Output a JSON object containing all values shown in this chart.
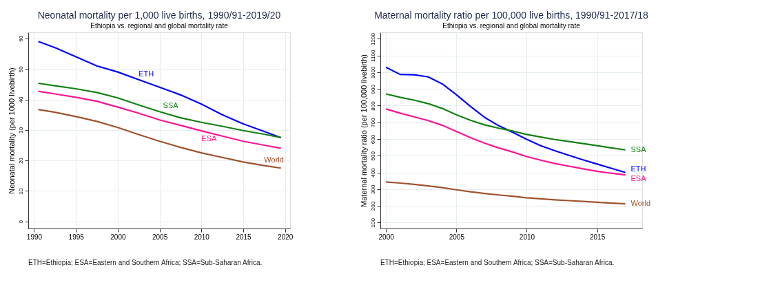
{
  "chart_data": [
    {
      "type": "line",
      "title": "Neonatal mortality per 1,000 live births, 1990/91-2019/20",
      "subtitle": "Ethiopia vs. regional and global mortality rate",
      "ylabel": "Neonatal mortality (per 1000 livebirth)",
      "x": [
        1990.5,
        1992.5,
        1995,
        1997.5,
        2000,
        2002.5,
        2005,
        2007.5,
        2010,
        2012.5,
        2015,
        2017.5,
        2019.5
      ],
      "series": [
        {
          "name": "ETH",
          "color": "#0000ff",
          "values": [
            59,
            57,
            54,
            51,
            49,
            46.5,
            44,
            41.5,
            38.5,
            35,
            32,
            29.5,
            27.5
          ]
        },
        {
          "name": "SSA",
          "color": "#138013",
          "values": [
            45.3,
            44.5,
            43.5,
            42.3,
            40.5,
            38.2,
            36,
            34,
            32.5,
            31.2,
            29.8,
            28.6,
            27.5
          ]
        },
        {
          "name": "ESA",
          "color": "#ff1493",
          "values": [
            42.7,
            41.8,
            40.7,
            39.4,
            37.5,
            35.5,
            33.3,
            31.5,
            29.7,
            28,
            26.3,
            25,
            24
          ]
        },
        {
          "name": "World",
          "color": "#a0522d",
          "values": [
            36.7,
            35.8,
            34.4,
            32.8,
            30.8,
            28.5,
            26.3,
            24.3,
            22.5,
            21,
            19.5,
            18.3,
            17.5
          ]
        }
      ],
      "xlim": [
        1989.3,
        2020.6
      ],
      "xticks": [
        1990,
        1995,
        2000,
        2005,
        2010,
        2015,
        2020
      ],
      "ylim": [
        -2.3,
        62
      ],
      "yticks": [
        0,
        10,
        20,
        30,
        40,
        50,
        60
      ],
      "grid": true,
      "legend": false,
      "annotations": [
        "ETH=Ethiopia; ESA=Eastern and Southern Africa; SSA=Sub-Saharan Africa."
      ]
    },
    {
      "type": "line",
      "title": "Maternal mortality ratio per 100,000 live births, 1990/91-2017/18",
      "subtitle": "Ethiopia vs. regional and global mortality rate",
      "ylabel": "Maternal mortality ratio (per 100,000 livebirth)",
      "x": [
        2000,
        2001,
        2002,
        2003,
        2004,
        2005,
        2006,
        2007,
        2008,
        2009,
        2010,
        2011,
        2012,
        2013,
        2014,
        2015,
        2016,
        2017
      ],
      "series": [
        {
          "name": "ETH",
          "color": "#0000ff",
          "values": [
            1030,
            987,
            985,
            972,
            930,
            865,
            795,
            730,
            680,
            640,
            598,
            560,
            530,
            502,
            475,
            450,
            425,
            400
          ]
        },
        {
          "name": "SSA",
          "color": "#138013",
          "values": [
            870,
            850,
            833,
            812,
            783,
            745,
            712,
            685,
            665,
            648,
            627,
            612,
            597,
            585,
            573,
            560,
            547,
            535
          ]
        },
        {
          "name": "ESA",
          "color": "#ff1493",
          "values": [
            780,
            755,
            733,
            710,
            682,
            645,
            608,
            575,
            547,
            522,
            495,
            473,
            453,
            437,
            421,
            407,
            395,
            385
          ]
        },
        {
          "name": "World",
          "color": "#a0522d",
          "values": [
            343,
            336,
            328,
            319,
            309,
            296,
            284,
            274,
            265,
            257,
            248,
            242,
            236,
            231,
            226,
            221,
            216,
            212
          ]
        }
      ],
      "xlim": [
        1999.6,
        2018.2
      ],
      "xticks": [
        2000,
        2005,
        2010,
        2015
      ],
      "ylim": [
        64,
        1239
      ],
      "yticks": [
        100,
        200,
        300,
        400,
        500,
        600,
        700,
        800,
        900,
        1000,
        1100,
        1200
      ],
      "grid": true,
      "legend": false,
      "annotations": [
        "ETH=Ethiopia; ESA=Eastern and Southern Africa; SSA=Sub-Saharan Africa."
      ]
    }
  ]
}
